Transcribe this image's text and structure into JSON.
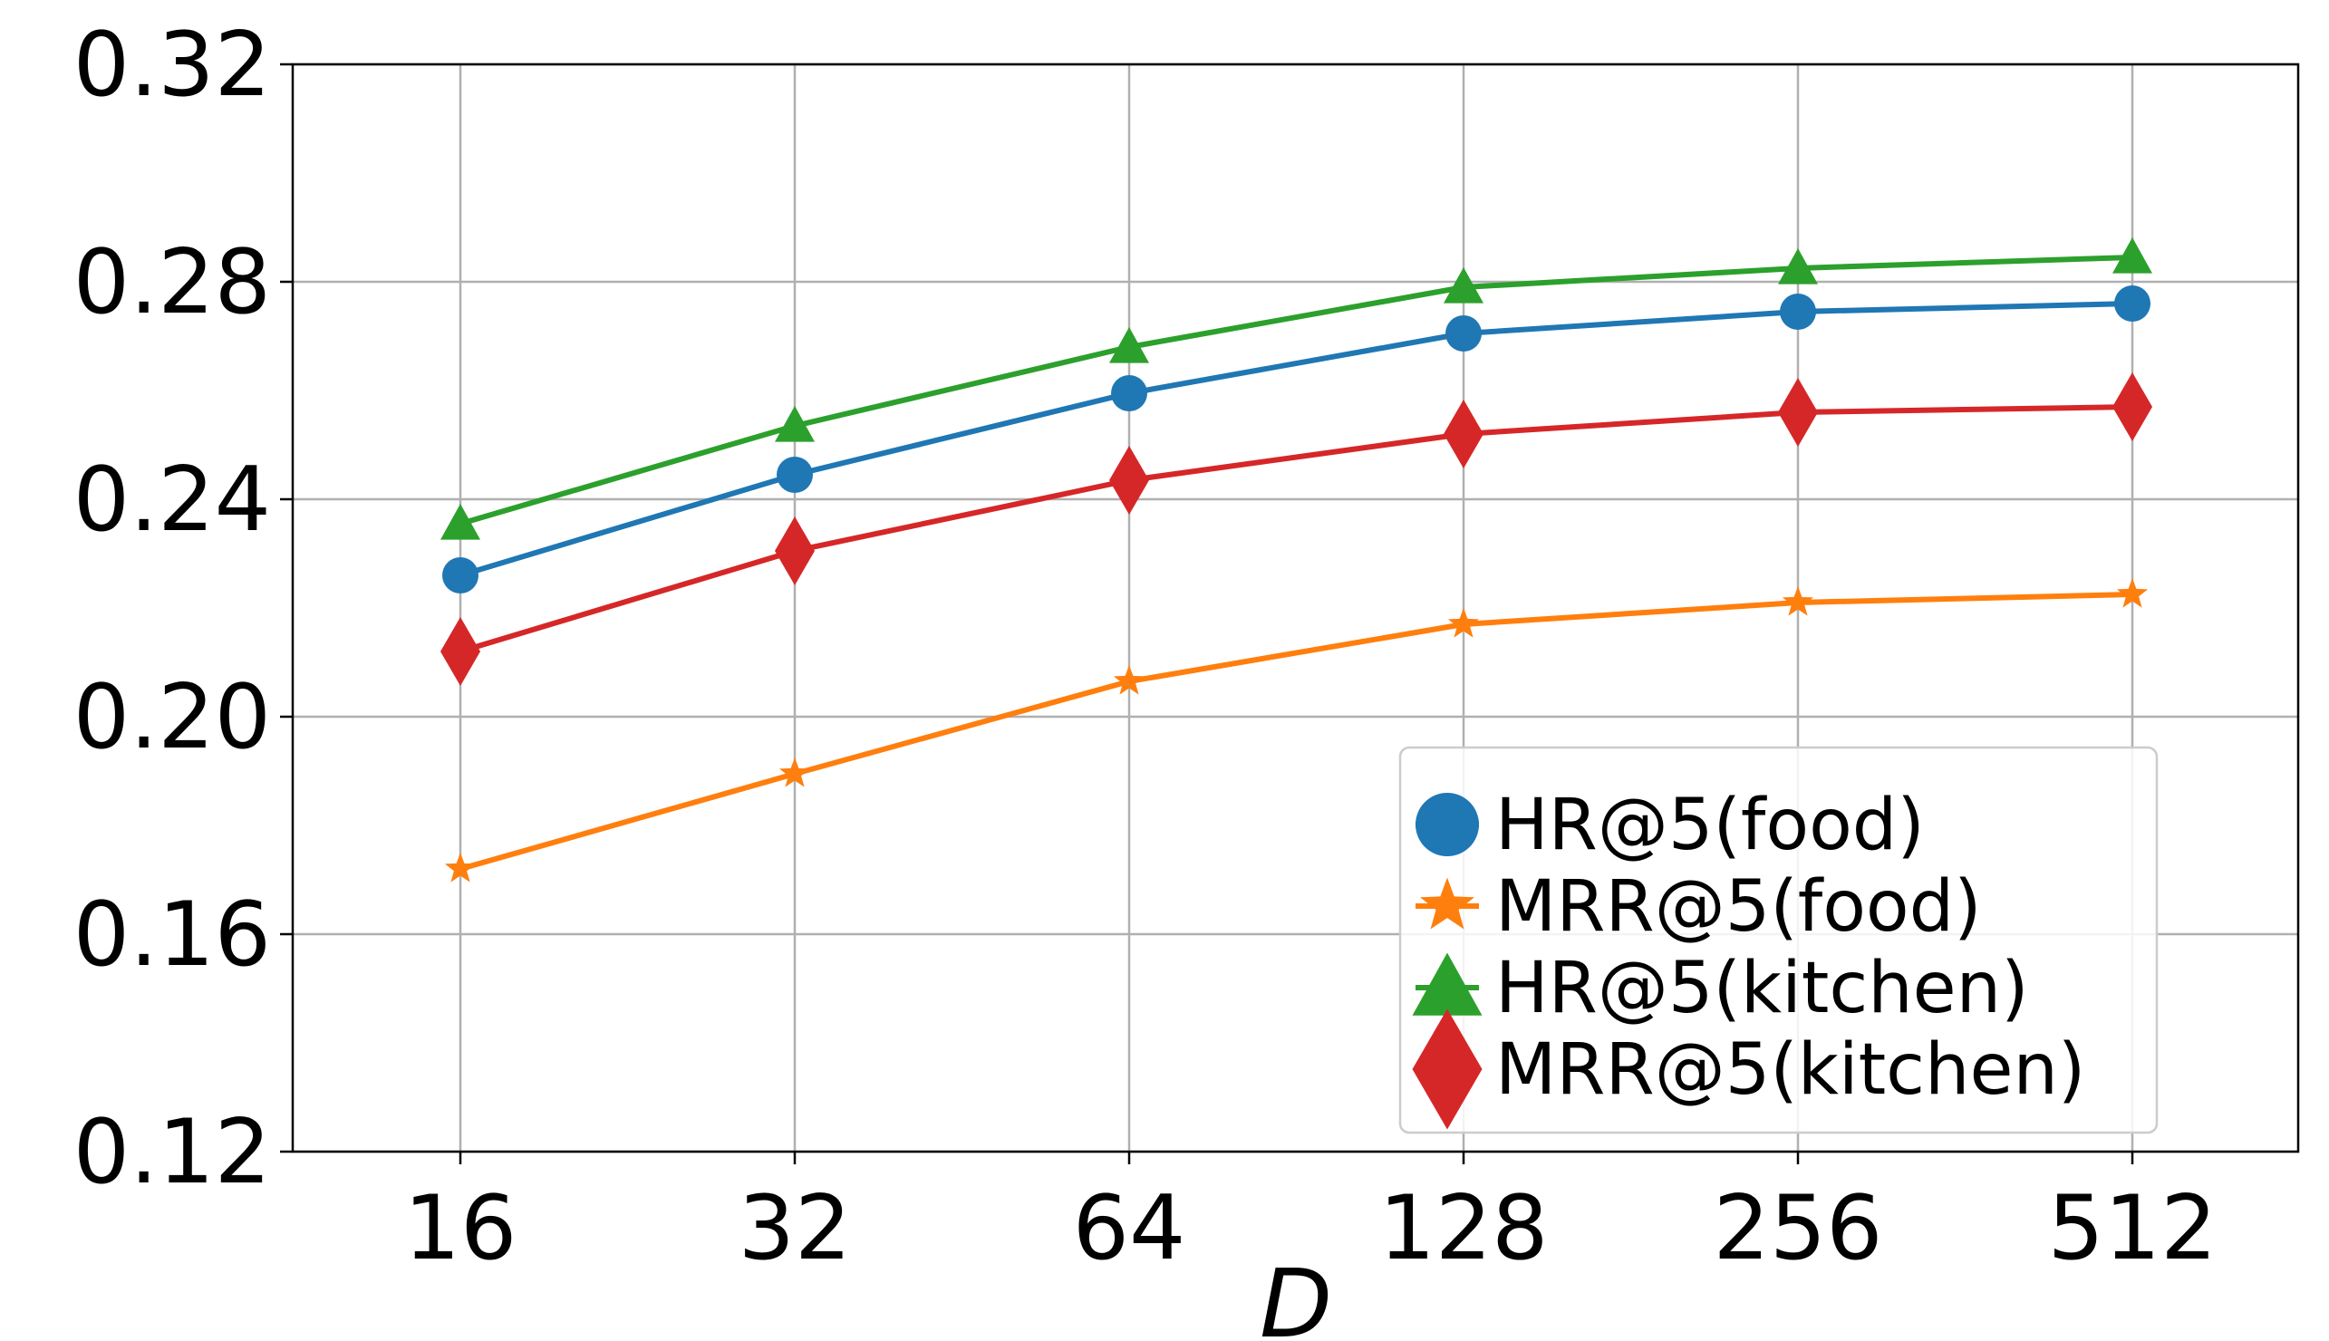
{
  "chart_data": {
    "type": "line",
    "title": "",
    "xlabel": "D",
    "ylabel": "",
    "categories": [
      "16",
      "32",
      "64",
      "128",
      "256",
      "512"
    ],
    "ylim": [
      0.12,
      0.32
    ],
    "yticks": [
      "0.12",
      "0.16",
      "0.20",
      "0.24",
      "0.28",
      "0.32"
    ],
    "grid": true,
    "legend_position": "lower-right",
    "series": [
      {
        "name": "HR@5(food)",
        "color": "#1f77b4",
        "marker": "circle",
        "values": [
          0.226,
          0.2445,
          0.2595,
          0.2705,
          0.2745,
          0.276
        ]
      },
      {
        "name": "MRR@5(food)",
        "color": "#ff7f0e",
        "marker": "star",
        "values": [
          0.172,
          0.1895,
          0.2065,
          0.217,
          0.221,
          0.2225
        ]
      },
      {
        "name": "HR@5(kitchen)",
        "color": "#2ca02c",
        "marker": "triangle",
        "values": [
          0.2355,
          0.2535,
          0.268,
          0.279,
          0.2825,
          0.2845
        ]
      },
      {
        "name": "MRR@5(kitchen)",
        "color": "#d62728",
        "marker": "diamond",
        "values": [
          0.212,
          0.2305,
          0.2435,
          0.252,
          0.256,
          0.257
        ]
      }
    ]
  }
}
